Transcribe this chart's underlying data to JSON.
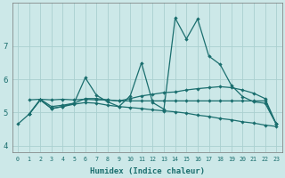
{
  "xlabel": "Humidex (Indice chaleur)",
  "xlim": [
    -0.5,
    23.5
  ],
  "ylim": [
    3.8,
    8.3
  ],
  "yticks": [
    4,
    5,
    6,
    7
  ],
  "xticks": [
    0,
    1,
    2,
    3,
    4,
    5,
    6,
    7,
    8,
    9,
    10,
    11,
    12,
    13,
    14,
    15,
    16,
    17,
    18,
    19,
    20,
    21,
    22,
    23
  ],
  "background_color": "#cce8e8",
  "line_color": "#1a6e6e",
  "grid_color": "#aad0d0",
  "line1_x": [
    0,
    1,
    2,
    3,
    4,
    5,
    6,
    7,
    8,
    9,
    10,
    11,
    12,
    13,
    14,
    15,
    16,
    17,
    18,
    19,
    20,
    21,
    22,
    23
  ],
  "line1_y": [
    4.65,
    4.95,
    5.4,
    5.18,
    5.22,
    5.28,
    6.05,
    5.52,
    5.32,
    5.18,
    5.5,
    6.5,
    5.3,
    5.1,
    7.85,
    7.22,
    7.82,
    6.7,
    6.45,
    5.82,
    5.48,
    5.32,
    5.28,
    4.65
  ],
  "line2_x": [
    1,
    2,
    3,
    4,
    5,
    6,
    7,
    8,
    9,
    10,
    11,
    12,
    13,
    14,
    15,
    16,
    17,
    18,
    19,
    20,
    21,
    22,
    23
  ],
  "line2_y": [
    4.95,
    5.38,
    5.12,
    5.18,
    5.28,
    5.42,
    5.42,
    5.38,
    5.35,
    5.42,
    5.5,
    5.55,
    5.6,
    5.62,
    5.68,
    5.72,
    5.75,
    5.78,
    5.75,
    5.68,
    5.58,
    5.42,
    4.65
  ],
  "line3_x": [
    1,
    2,
    3,
    4,
    5,
    6,
    7,
    8,
    9,
    10,
    11,
    12,
    13,
    14,
    15,
    16,
    17,
    18,
    19,
    20,
    21,
    22,
    23
  ],
  "line3_y": [
    4.95,
    5.38,
    5.12,
    5.18,
    5.25,
    5.3,
    5.28,
    5.22,
    5.18,
    5.15,
    5.12,
    5.08,
    5.05,
    5.02,
    4.98,
    4.92,
    4.88,
    4.82,
    4.78,
    4.72,
    4.68,
    4.62,
    4.58
  ],
  "line4_x": [
    1,
    2,
    3,
    4,
    5,
    6,
    7,
    8,
    9,
    10,
    11,
    12,
    13,
    14,
    15,
    16,
    17,
    18,
    19,
    20,
    21,
    22,
    23
  ],
  "line4_y": [
    5.38,
    5.4,
    5.38,
    5.4,
    5.38,
    5.4,
    5.38,
    5.38,
    5.35,
    5.35,
    5.35,
    5.35,
    5.35,
    5.35,
    5.35,
    5.35,
    5.35,
    5.35,
    5.35,
    5.35,
    5.35,
    5.35,
    4.65
  ]
}
